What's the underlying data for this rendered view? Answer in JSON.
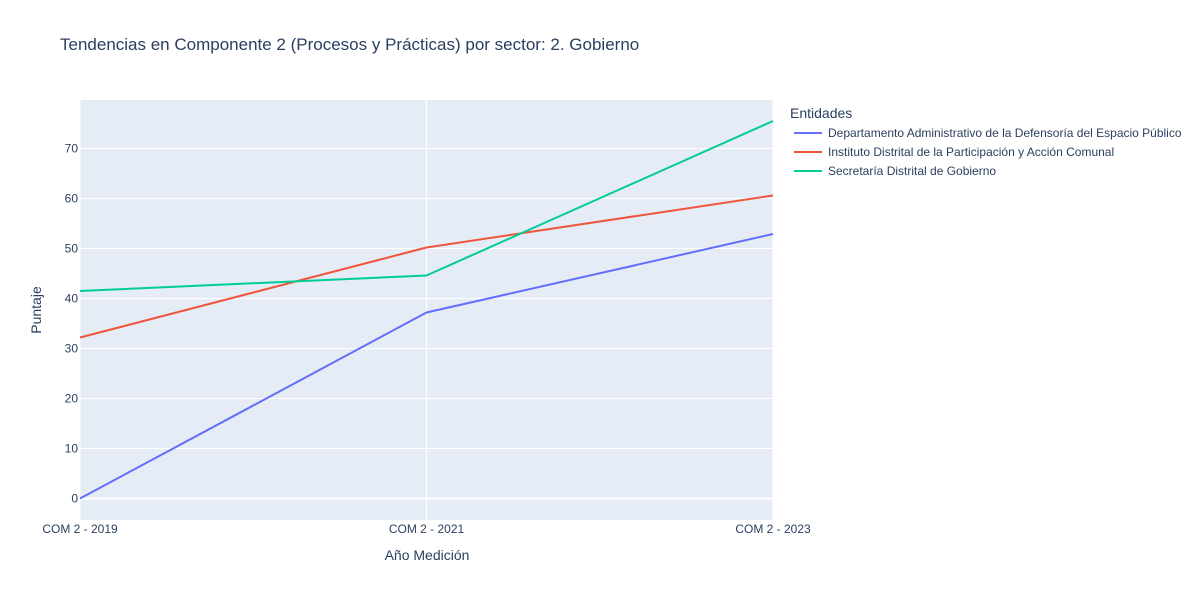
{
  "chart_data": {
    "type": "line",
    "title": "Tendencias en Componente 2 (Procesos y Prácticas) por sector: 2. Gobierno",
    "xlabel": "Año Medición",
    "ylabel": "Puntaje",
    "categories": [
      "COM 2 - 2019",
      "COM 2 - 2021",
      "COM 2 - 2023"
    ],
    "ylim": [
      -4.3,
      79.7
    ],
    "yticks": [
      0,
      10,
      20,
      30,
      40,
      50,
      60,
      70
    ],
    "grid": true,
    "legend": {
      "title": "Entidades",
      "placement": "right"
    },
    "series": [
      {
        "name": "Departamento Administrativo de la Defensoría del Espacio Público",
        "color": "#636efa",
        "values": [
          0,
          37.2,
          52.9
        ]
      },
      {
        "name": "Instituto Distrital de la Participación y Acción Comunal",
        "color": "#ef553b",
        "values": [
          32.2,
          50.2,
          60.6
        ]
      },
      {
        "name": "Secretaría Distrital de Gobierno",
        "color": "#00cc96",
        "values": [
          41.5,
          44.6,
          75.5
        ]
      }
    ]
  }
}
